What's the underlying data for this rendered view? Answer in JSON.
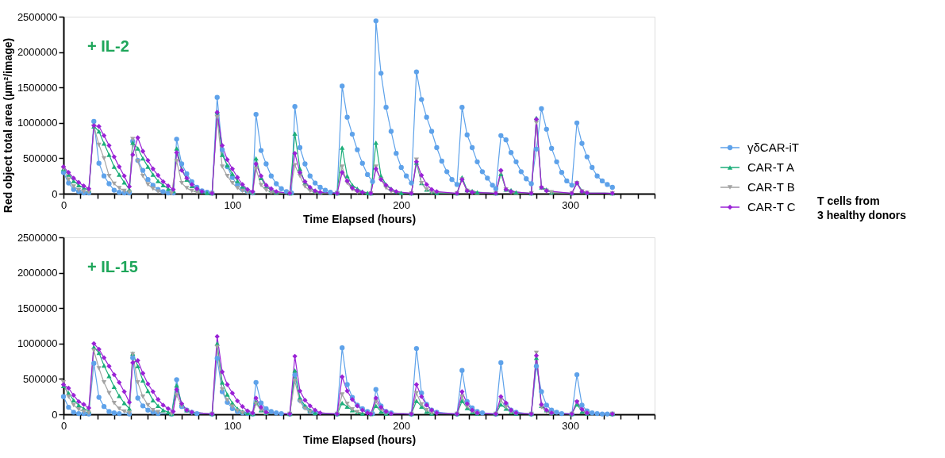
{
  "chart_data": [
    {
      "type": "line",
      "xlabel": "Time Elapsed (hours)",
      "ylabel": "Red object total area (µm²/image)",
      "annotations": [
        "+ IL-2",
        "T cells from 3 healthy donors"
      ],
      "xlim": [
        0,
        350
      ],
      "xticks": [
        0,
        {
          "value": 10,
          "label": null
        },
        {
          "value": 20,
          "label": null
        },
        {
          "value": 30,
          "label": null
        },
        {
          "value": 40,
          "label": null
        },
        {
          "value": 50,
          "label": null
        },
        {
          "value": 60,
          "label": null
        },
        {
          "value": 70,
          "label": null
        },
        {
          "value": 80,
          "label": null
        },
        {
          "value": 90,
          "label": null
        },
        100,
        {
          "value": 110,
          "label": null
        },
        {
          "value": 120,
          "label": null
        },
        {
          "value": 130,
          "label": null
        },
        {
          "value": 140,
          "label": null
        },
        {
          "value": 150,
          "label": null
        },
        {
          "value": 160,
          "label": null
        },
        {
          "value": 170,
          "label": null
        },
        {
          "value": 180,
          "label": null
        },
        {
          "value": 190,
          "label": null
        },
        200,
        {
          "value": 210,
          "label": null
        },
        {
          "value": 220,
          "label": null
        },
        {
          "value": 230,
          "label": null
        },
        {
          "value": 240,
          "label": null
        },
        {
          "value": 250,
          "label": null
        },
        {
          "value": 260,
          "label": null
        },
        {
          "value": 270,
          "label": null
        },
        {
          "value": 280,
          "label": null
        },
        {
          "value": 290,
          "label": null
        },
        300,
        {
          "value": 310,
          "label": null
        },
        {
          "value": 320,
          "label": null
        },
        {
          "value": 330,
          "label": null
        },
        {
          "value": 340,
          "label": null
        },
        {
          "value": 350,
          "label": null
        }
      ],
      "ylim": [
        0,
        2500000
      ],
      "yticks": [
        0,
        500000,
        1000000,
        1500000,
        2000000,
        2500000
      ],
      "grid": false,
      "legend": "right",
      "line_style": "solid",
      "series": [
        {
          "name": "γδCAR-iT",
          "color": "#5ea2ea",
          "marker": "circle",
          "x": [
            0,
            3,
            6,
            9,
            12,
            15,
            18,
            21,
            24,
            27,
            30,
            33,
            36,
            39,
            41,
            44,
            47,
            50,
            53,
            56,
            59,
            62,
            65,
            67,
            70,
            73,
            76,
            79,
            82,
            85,
            88,
            91,
            94,
            97,
            100,
            103,
            106,
            109,
            112,
            114,
            117,
            120,
            123,
            126,
            129,
            132,
            135,
            137,
            140,
            143,
            146,
            149,
            152,
            155,
            158,
            162,
            165,
            168,
            171,
            174,
            177,
            180,
            183,
            185,
            188,
            191,
            194,
            197,
            200,
            203,
            206,
            209,
            212,
            215,
            218,
            221,
            224,
            227,
            230,
            233,
            236,
            239,
            242,
            245,
            248,
            251,
            254,
            256,
            259,
            262,
            265,
            268,
            271,
            274,
            277,
            280,
            283,
            286,
            289,
            292,
            295,
            298,
            301,
            304,
            307,
            310,
            313,
            316,
            319,
            322,
            325
          ],
          "values": [
            300000,
            150000,
            60000,
            30000,
            10000,
            10000,
            1020000,
            430000,
            250000,
            140000,
            50000,
            20000,
            10000,
            10000,
            740000,
            470000,
            330000,
            200000,
            120000,
            60000,
            30000,
            10000,
            10000,
            770000,
            420000,
            280000,
            170000,
            90000,
            40000,
            20000,
            10000,
            1360000,
            620000,
            380000,
            230000,
            120000,
            60000,
            30000,
            10000,
            1120000,
            610000,
            420000,
            250000,
            140000,
            70000,
            30000,
            10000,
            1230000,
            650000,
            420000,
            250000,
            150000,
            90000,
            50000,
            20000,
            10000,
            1520000,
            1080000,
            840000,
            620000,
            430000,
            270000,
            170000,
            2440000,
            1700000,
            1220000,
            880000,
            570000,
            370000,
            250000,
            150000,
            1720000,
            1330000,
            1080000,
            880000,
            650000,
            460000,
            310000,
            200000,
            130000,
            1220000,
            830000,
            650000,
            450000,
            310000,
            220000,
            120000,
            70000,
            820000,
            760000,
            580000,
            450000,
            310000,
            210000,
            140000,
            630000,
            1200000,
            910000,
            640000,
            450000,
            300000,
            180000,
            120000,
            1000000,
            710000,
            520000,
            370000,
            250000,
            180000,
            130000,
            90000
          ]
        },
        {
          "name": "CAR-T A",
          "color": "#1dae7a",
          "marker": "triangle",
          "x": [
            0,
            3,
            6,
            9,
            12,
            15,
            18,
            21,
            24,
            27,
            30,
            33,
            36,
            39,
            41,
            44,
            47,
            50,
            53,
            56,
            59,
            62,
            65,
            67,
            70,
            73,
            76,
            79,
            82,
            85,
            88,
            91,
            94,
            97,
            100,
            103,
            106,
            109,
            112,
            114,
            117,
            120,
            123,
            126,
            134,
            137,
            140,
            143,
            146,
            149,
            152,
            162,
            165,
            168,
            171,
            174,
            177,
            180,
            182,
            185,
            188,
            191,
            194,
            197,
            200,
            206,
            209,
            212,
            215,
            218,
            221,
            233,
            236,
            239,
            242,
            245,
            256,
            259,
            262,
            265,
            268,
            277,
            280,
            283,
            286,
            289,
            301,
            304,
            307,
            310,
            325
          ],
          "values": [
            350000,
            270000,
            180000,
            120000,
            80000,
            50000,
            950000,
            880000,
            710000,
            550000,
            380000,
            270000,
            160000,
            60000,
            720000,
            640000,
            500000,
            380000,
            270000,
            180000,
            120000,
            70000,
            40000,
            640000,
            350000,
            200000,
            110000,
            60000,
            30000,
            10000,
            5000,
            1150000,
            550000,
            400000,
            280000,
            180000,
            100000,
            50000,
            20000,
            500000,
            220000,
            100000,
            50000,
            20000,
            5000,
            850000,
            350000,
            150000,
            80000,
            40000,
            20000,
            5000,
            650000,
            250000,
            120000,
            70000,
            30000,
            10000,
            5000,
            720000,
            250000,
            130000,
            70000,
            30000,
            10000,
            5000,
            440000,
            150000,
            60000,
            30000,
            10000,
            5000,
            230000,
            50000,
            40000,
            20000,
            5000,
            280000,
            60000,
            50000,
            20000,
            5000,
            1070000,
            90000,
            60000,
            20000,
            5000,
            160000,
            40000,
            10000,
            5000
          ]
        },
        {
          "name": "CAR-T B",
          "color": "#a3a3a3",
          "marker": "triangle-down",
          "x": [
            0,
            3,
            6,
            9,
            12,
            15,
            18,
            21,
            24,
            27,
            30,
            33,
            36,
            39,
            41,
            44,
            47,
            50,
            53,
            56,
            64,
            67,
            70,
            73,
            76,
            79,
            88,
            91,
            94,
            97,
            100,
            103,
            106,
            109,
            112,
            114,
            117,
            120,
            123,
            134,
            137,
            140,
            143,
            146,
            149,
            162,
            165,
            168,
            171,
            174,
            182,
            185,
            188,
            191,
            194,
            206,
            209,
            212,
            215,
            218,
            233,
            236,
            239,
            242,
            256,
            259,
            262,
            265,
            277,
            280,
            283,
            286,
            289,
            301,
            304,
            307,
            310,
            325
          ],
          "values": [
            350000,
            200000,
            100000,
            50000,
            30000,
            20000,
            950000,
            690000,
            500000,
            250000,
            140000,
            80000,
            40000,
            20000,
            770000,
            460000,
            250000,
            130000,
            70000,
            30000,
            5000,
            460000,
            150000,
            80000,
            40000,
            20000,
            5000,
            1080000,
            380000,
            250000,
            150000,
            80000,
            40000,
            20000,
            5000,
            350000,
            120000,
            50000,
            20000,
            5000,
            400000,
            250000,
            100000,
            40000,
            20000,
            5000,
            380000,
            150000,
            60000,
            20000,
            5000,
            380000,
            200000,
            80000,
            30000,
            5000,
            480000,
            150000,
            60000,
            20000,
            5000,
            200000,
            40000,
            20000,
            5000,
            300000,
            60000,
            20000,
            5000,
            1000000,
            80000,
            40000,
            20000,
            5000,
            150000,
            30000,
            10000,
            5000
          ]
        },
        {
          "name": "CAR-T C",
          "color": "#9a22d6",
          "marker": "diamond",
          "x": [
            0,
            3,
            6,
            9,
            12,
            15,
            18,
            21,
            24,
            27,
            30,
            33,
            36,
            39,
            41,
            44,
            47,
            50,
            53,
            56,
            59,
            62,
            65,
            67,
            70,
            73,
            76,
            79,
            82,
            88,
            91,
            94,
            97,
            100,
            103,
            106,
            109,
            112,
            114,
            117,
            120,
            123,
            126,
            134,
            137,
            140,
            143,
            146,
            149,
            152,
            162,
            165,
            168,
            171,
            174,
            177,
            182,
            185,
            188,
            191,
            194,
            197,
            206,
            209,
            212,
            215,
            218,
            221,
            233,
            236,
            239,
            242,
            256,
            259,
            262,
            265,
            277,
            280,
            283,
            286,
            301,
            304,
            307,
            310,
            325
          ],
          "values": [
            380000,
            300000,
            220000,
            160000,
            110000,
            70000,
            960000,
            950000,
            820000,
            680000,
            520000,
            380000,
            250000,
            100000,
            550000,
            790000,
            600000,
            470000,
            350000,
            260000,
            170000,
            110000,
            60000,
            580000,
            330000,
            220000,
            130000,
            70000,
            30000,
            5000,
            1150000,
            680000,
            480000,
            350000,
            230000,
            130000,
            60000,
            30000,
            420000,
            250000,
            120000,
            70000,
            30000,
            5000,
            570000,
            300000,
            170000,
            90000,
            40000,
            20000,
            5000,
            300000,
            180000,
            80000,
            40000,
            20000,
            5000,
            350000,
            200000,
            120000,
            60000,
            30000,
            5000,
            450000,
            260000,
            130000,
            60000,
            30000,
            5000,
            200000,
            40000,
            20000,
            5000,
            330000,
            60000,
            30000,
            5000,
            1050000,
            90000,
            40000,
            5000,
            150000,
            30000,
            10000,
            5000
          ]
        }
      ]
    },
    {
      "type": "line",
      "xlabel": "Time Elapsed (hours)",
      "annotations": [
        "+ IL-15"
      ],
      "xlim": [
        0,
        350
      ],
      "xticks": [
        0,
        {
          "value": 10,
          "label": null
        },
        {
          "value": 20,
          "label": null
        },
        {
          "value": 30,
          "label": null
        },
        {
          "value": 40,
          "label": null
        },
        {
          "value": 50,
          "label": null
        },
        {
          "value": 60,
          "label": null
        },
        {
          "value": 70,
          "label": null
        },
        {
          "value": 80,
          "label": null
        },
        {
          "value": 90,
          "label": null
        },
        100,
        {
          "value": 110,
          "label": null
        },
        {
          "value": 120,
          "label": null
        },
        {
          "value": 130,
          "label": null
        },
        {
          "value": 140,
          "label": null
        },
        {
          "value": 150,
          "label": null
        },
        {
          "value": 160,
          "label": null
        },
        {
          "value": 170,
          "label": null
        },
        {
          "value": 180,
          "label": null
        },
        {
          "value": 190,
          "label": null
        },
        200,
        {
          "value": 210,
          "label": null
        },
        {
          "value": 220,
          "label": null
        },
        {
          "value": 230,
          "label": null
        },
        {
          "value": 240,
          "label": null
        },
        {
          "value": 250,
          "label": null
        },
        {
          "value": 260,
          "label": null
        },
        {
          "value": 270,
          "label": null
        },
        {
          "value": 280,
          "label": null
        },
        {
          "value": 290,
          "label": null
        },
        300,
        {
          "value": 310,
          "label": null
        },
        {
          "value": 320,
          "label": null
        },
        {
          "value": 330,
          "label": null
        },
        {
          "value": 340,
          "label": null
        },
        {
          "value": 350,
          "label": null
        }
      ],
      "ylim": [
        0,
        2500000
      ],
      "yticks": [
        0,
        500000,
        1000000,
        1500000,
        2000000,
        2500000
      ],
      "grid": false,
      "line_style": "solid",
      "series": [
        {
          "color": "#5ea2ea",
          "marker": "circle",
          "x": [
            0,
            3,
            6,
            9,
            12,
            15,
            18,
            21,
            24,
            27,
            30,
            33,
            39,
            41,
            44,
            47,
            50,
            53,
            56,
            64,
            67,
            70,
            73,
            76,
            79,
            88,
            91,
            94,
            97,
            100,
            103,
            106,
            109,
            112,
            114,
            117,
            120,
            123,
            126,
            129,
            134,
            137,
            140,
            143,
            146,
            149,
            162,
            165,
            168,
            171,
            174,
            177,
            180,
            183,
            185,
            188,
            191,
            194,
            206,
            209,
            212,
            215,
            218,
            221,
            233,
            236,
            239,
            242,
            245,
            248,
            256,
            259,
            262,
            265,
            268,
            277,
            280,
            283,
            286,
            289,
            292,
            295,
            301,
            304,
            307,
            310,
            313,
            316,
            319,
            322,
            325
          ],
          "values": [
            250000,
            100000,
            30000,
            10000,
            10000,
            5000,
            720000,
            240000,
            110000,
            40000,
            20000,
            10000,
            5000,
            800000,
            230000,
            120000,
            60000,
            30000,
            10000,
            5000,
            490000,
            110000,
            60000,
            30000,
            10000,
            5000,
            790000,
            320000,
            170000,
            80000,
            40000,
            20000,
            10000,
            5000,
            450000,
            160000,
            80000,
            40000,
            20000,
            10000,
            5000,
            560000,
            200000,
            100000,
            40000,
            20000,
            5000,
            940000,
            420000,
            240000,
            130000,
            80000,
            40000,
            10000,
            350000,
            120000,
            40000,
            20000,
            5000,
            930000,
            300000,
            140000,
            60000,
            30000,
            5000,
            620000,
            180000,
            90000,
            40000,
            20000,
            5000,
            730000,
            140000,
            60000,
            30000,
            5000,
            680000,
            320000,
            130000,
            60000,
            30000,
            10000,
            5000,
            560000,
            130000,
            50000,
            20000,
            10000,
            5000,
            5000,
            5000
          ]
        },
        {
          "color": "#1dae7a",
          "marker": "triangle",
          "x": [
            0,
            3,
            6,
            9,
            12,
            15,
            18,
            21,
            24,
            27,
            30,
            33,
            36,
            39,
            41,
            44,
            47,
            50,
            53,
            56,
            59,
            62,
            64,
            67,
            70,
            73,
            76,
            88,
            91,
            94,
            97,
            100,
            103,
            106,
            109,
            112,
            114,
            117,
            120,
            134,
            137,
            140,
            143,
            146,
            149,
            162,
            165,
            168,
            171,
            174,
            177,
            182,
            185,
            188,
            191,
            206,
            209,
            212,
            215,
            218,
            233,
            236,
            239,
            242,
            245,
            256,
            259,
            262,
            265,
            268,
            277,
            280,
            283,
            286,
            289,
            301,
            304,
            307,
            310,
            325
          ],
          "values": [
            400000,
            300000,
            200000,
            130000,
            80000,
            50000,
            950000,
            870000,
            690000,
            540000,
            390000,
            260000,
            160000,
            80000,
            860000,
            680000,
            480000,
            330000,
            200000,
            120000,
            60000,
            30000,
            5000,
            410000,
            150000,
            60000,
            30000,
            5000,
            1000000,
            450000,
            280000,
            160000,
            80000,
            40000,
            20000,
            5000,
            180000,
            60000,
            20000,
            5000,
            620000,
            230000,
            120000,
            60000,
            20000,
            5000,
            160000,
            110000,
            60000,
            30000,
            10000,
            5000,
            120000,
            40000,
            10000,
            5000,
            190000,
            110000,
            40000,
            10000,
            5000,
            190000,
            90000,
            30000,
            10000,
            5000,
            140000,
            80000,
            30000,
            10000,
            5000,
            800000,
            120000,
            60000,
            20000,
            5000,
            140000,
            40000,
            10000,
            5000
          ]
        },
        {
          "color": "#a3a3a3",
          "marker": "triangle-down",
          "x": [
            0,
            3,
            6,
            9,
            12,
            15,
            18,
            21,
            24,
            27,
            30,
            33,
            36,
            39,
            41,
            44,
            47,
            50,
            53,
            56,
            64,
            67,
            70,
            73,
            76,
            88,
            91,
            94,
            97,
            100,
            103,
            106,
            112,
            114,
            117,
            120,
            134,
            137,
            140,
            143,
            146,
            162,
            165,
            168,
            171,
            174,
            182,
            185,
            188,
            191,
            206,
            209,
            212,
            215,
            218,
            233,
            236,
            239,
            242,
            245,
            256,
            259,
            262,
            265,
            277,
            280,
            283,
            286,
            289,
            301,
            304,
            307,
            310,
            325
          ],
          "values": [
            450000,
            250000,
            130000,
            70000,
            40000,
            20000,
            900000,
            650000,
            450000,
            300000,
            160000,
            80000,
            40000,
            20000,
            850000,
            450000,
            250000,
            130000,
            60000,
            30000,
            5000,
            270000,
            120000,
            50000,
            20000,
            5000,
            950000,
            350000,
            200000,
            110000,
            50000,
            20000,
            5000,
            150000,
            60000,
            20000,
            5000,
            470000,
            180000,
            80000,
            30000,
            5000,
            280000,
            150000,
            70000,
            30000,
            5000,
            180000,
            70000,
            20000,
            5000,
            300000,
            140000,
            60000,
            20000,
            5000,
            250000,
            110000,
            40000,
            10000,
            5000,
            200000,
            100000,
            30000,
            5000,
            870000,
            100000,
            40000,
            10000,
            5000,
            170000,
            60000,
            10000,
            5000
          ]
        },
        {
          "color": "#9a22d6",
          "marker": "diamond",
          "x": [
            0,
            3,
            6,
            9,
            12,
            15,
            18,
            21,
            24,
            27,
            30,
            33,
            36,
            39,
            41,
            44,
            47,
            50,
            53,
            56,
            59,
            62,
            65,
            67,
            70,
            73,
            76,
            88,
            91,
            94,
            97,
            100,
            103,
            106,
            109,
            112,
            114,
            117,
            120,
            134,
            137,
            140,
            143,
            146,
            149,
            152,
            162,
            165,
            168,
            171,
            174,
            177,
            180,
            182,
            185,
            188,
            191,
            194,
            206,
            209,
            212,
            215,
            218,
            221,
            233,
            236,
            239,
            242,
            245,
            256,
            259,
            262,
            265,
            268,
            277,
            280,
            283,
            286,
            289,
            301,
            304,
            307,
            310,
            325
          ],
          "values": [
            420000,
            370000,
            270000,
            180000,
            140000,
            90000,
            1000000,
            920000,
            800000,
            680000,
            560000,
            450000,
            320000,
            170000,
            730000,
            760000,
            580000,
            430000,
            320000,
            210000,
            130000,
            80000,
            40000,
            350000,
            150000,
            60000,
            30000,
            5000,
            1100000,
            600000,
            420000,
            300000,
            190000,
            110000,
            50000,
            20000,
            230000,
            100000,
            30000,
            5000,
            820000,
            330000,
            200000,
            120000,
            60000,
            20000,
            5000,
            530000,
            330000,
            210000,
            120000,
            60000,
            20000,
            5000,
            230000,
            100000,
            40000,
            10000,
            5000,
            420000,
            250000,
            130000,
            60000,
            20000,
            5000,
            320000,
            150000,
            60000,
            20000,
            5000,
            250000,
            160000,
            60000,
            20000,
            5000,
            830000,
            140000,
            60000,
            20000,
            5000,
            180000,
            70000,
            20000,
            5000
          ]
        }
      ]
    }
  ]
}
